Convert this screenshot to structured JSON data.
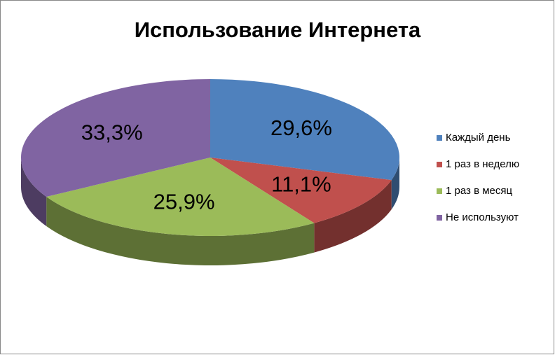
{
  "chart_data": {
    "type": "pie",
    "title": "Использование Интернета",
    "categories": [
      "Каждый день",
      "1 раз в неделю",
      "1 раз в месяц",
      "Не используют"
    ],
    "values": [
      29.6,
      11.1,
      25.9,
      33.3
    ],
    "value_labels": [
      "29,6%",
      "11,1%",
      "25,9%",
      "33,3%"
    ],
    "colors": [
      "#4f81bd",
      "#c0504d",
      "#9bbb59",
      "#8064a2"
    ],
    "legend": "right"
  }
}
